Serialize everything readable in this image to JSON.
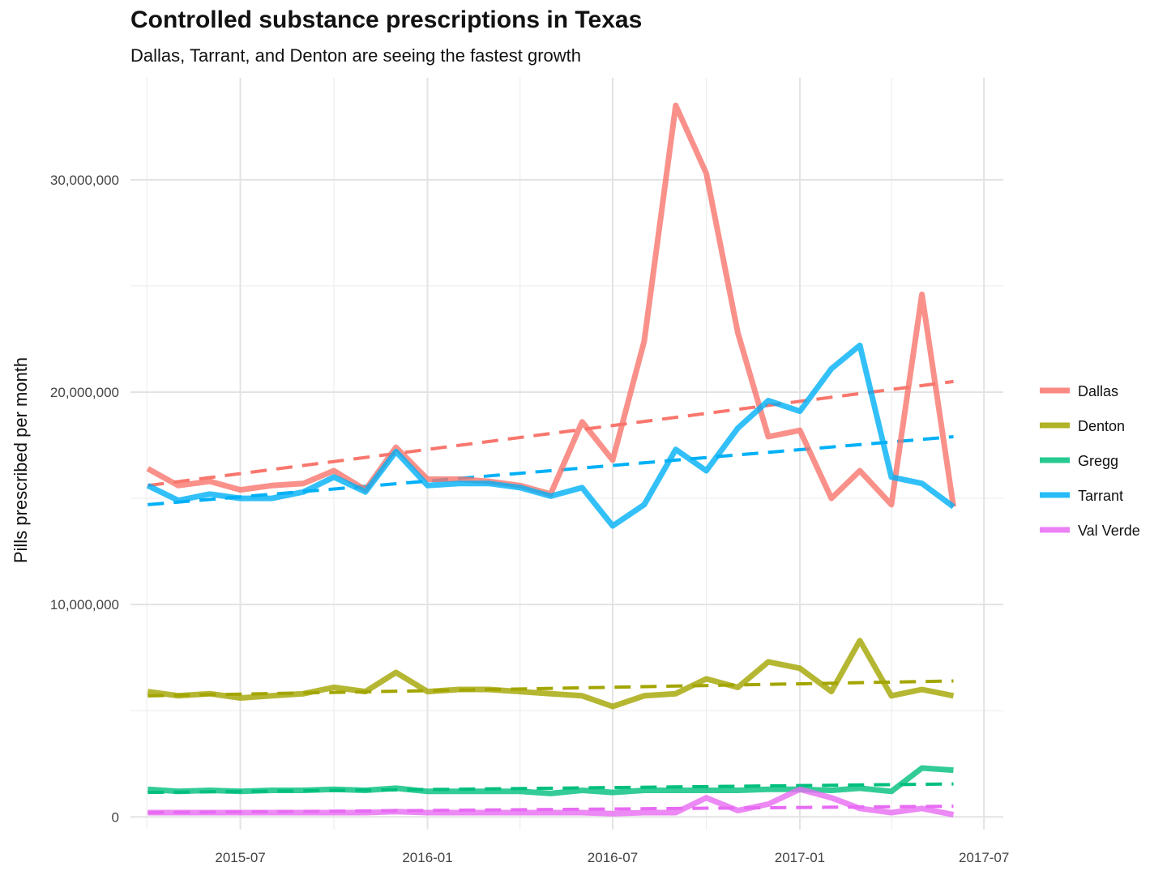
{
  "chart_data": {
    "type": "line",
    "title": "Controlled substance prescriptions in Texas",
    "subtitle": "Dallas, Tarrant, and Denton are seeing the fastest growth",
    "xlabel": "",
    "ylabel": "Pills prescribed per month",
    "x": [
      "2015-04",
      "2015-05",
      "2015-06",
      "2015-07",
      "2015-08",
      "2015-09",
      "2015-10",
      "2015-11",
      "2015-12",
      "2016-01",
      "2016-02",
      "2016-03",
      "2016-04",
      "2016-05",
      "2016-06",
      "2016-07",
      "2016-08",
      "2016-09",
      "2016-10",
      "2016-11",
      "2016-12",
      "2017-01",
      "2017-02",
      "2017-03",
      "2017-04",
      "2017-05",
      "2017-06"
    ],
    "x_ticks": [
      "2015-07",
      "2016-01",
      "2016-07",
      "2017-01",
      "2017-07"
    ],
    "y_ticks": [
      {
        "value": 0,
        "label": "0"
      },
      {
        "value": 10000000,
        "label": "10,000,000"
      },
      {
        "value": 20000000,
        "label": "20,000,000"
      },
      {
        "value": 30000000,
        "label": "30,000,000"
      }
    ],
    "xlim": [
      "2015-03-15",
      "2017-07-20"
    ],
    "ylim": [
      -600000,
      34800000
    ],
    "grid": true,
    "legend_position": "right",
    "series": [
      {
        "name": "Dallas",
        "color": "#F8766D",
        "values": [
          16400000,
          15600000,
          15800000,
          15400000,
          15600000,
          15700000,
          16300000,
          15400000,
          17400000,
          15900000,
          15900000,
          15800000,
          15600000,
          15200000,
          18600000,
          16800000,
          22400000,
          33500000,
          30300000,
          22800000,
          17900000,
          18200000,
          15000000,
          16300000,
          14700000,
          24600000,
          14600000
        ],
        "trend": [
          15600000,
          20500000
        ]
      },
      {
        "name": "Denton",
        "color": "#A3A500",
        "values": [
          5900000,
          5700000,
          5800000,
          5600000,
          5700000,
          5800000,
          6100000,
          5900000,
          6800000,
          5900000,
          6000000,
          6000000,
          5900000,
          5800000,
          5700000,
          5200000,
          5700000,
          5800000,
          6500000,
          6100000,
          7300000,
          7000000,
          5900000,
          8300000,
          5700000,
          6000000,
          5700000
        ],
        "trend": [
          5700000,
          6400000
        ]
      },
      {
        "name": "Gregg",
        "color": "#00BF7D",
        "values": [
          1300000,
          1200000,
          1250000,
          1200000,
          1250000,
          1250000,
          1300000,
          1250000,
          1350000,
          1200000,
          1200000,
          1200000,
          1200000,
          1100000,
          1250000,
          1150000,
          1250000,
          1250000,
          1250000,
          1250000,
          1300000,
          1300000,
          1250000,
          1350000,
          1200000,
          2300000,
          2200000
        ],
        "trend": [
          1150000,
          1550000
        ]
      },
      {
        "name": "Tarrant",
        "color": "#00B0F6",
        "values": [
          15600000,
          14900000,
          15200000,
          15000000,
          15000000,
          15300000,
          16000000,
          15300000,
          17200000,
          15600000,
          15700000,
          15700000,
          15500000,
          15100000,
          15500000,
          13700000,
          14700000,
          17300000,
          16300000,
          18300000,
          19600000,
          19100000,
          21100000,
          22200000,
          16000000,
          15700000,
          14600000
        ],
        "trend": [
          14700000,
          17900000
        ]
      },
      {
        "name": "Val Verde",
        "color": "#E76BF3",
        "values": [
          200000,
          200000,
          200000,
          200000,
          200000,
          200000,
          200000,
          200000,
          250000,
          200000,
          200000,
          200000,
          200000,
          200000,
          200000,
          150000,
          200000,
          200000,
          900000,
          300000,
          600000,
          1300000,
          900000,
          400000,
          200000,
          400000,
          100000
        ],
        "trend": [
          200000,
          500000
        ]
      }
    ]
  }
}
